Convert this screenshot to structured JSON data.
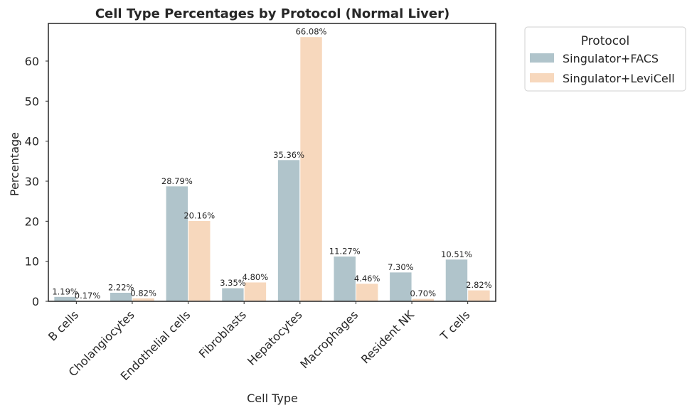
{
  "chart_data": {
    "type": "bar",
    "title": "Cell Type Percentages by Protocol (Normal Liver)",
    "xlabel": "Cell Type",
    "ylabel": "Percentage",
    "categories": [
      "B cells",
      "Cholangiocytes",
      "Endothelial cells",
      "Fibroblasts",
      "Hepatocytes",
      "Macrophages",
      "Resident NK",
      "T cells"
    ],
    "series": [
      {
        "name": "Singulator+FACS",
        "color": "#b0c4cb",
        "values": [
          1.19,
          2.22,
          28.79,
          3.35,
          35.36,
          11.27,
          7.3,
          10.51
        ],
        "labels": [
          "1.19%",
          "2.22%",
          "28.79%",
          "3.35%",
          "35.36%",
          "11.27%",
          "7.30%",
          "10.51%"
        ]
      },
      {
        "name": "Singulator+LeviCell",
        "color": "#f7d8bd",
        "values": [
          0.17,
          0.82,
          20.16,
          4.8,
          66.08,
          4.46,
          0.7,
          2.82
        ],
        "labels": [
          "0.17%",
          "0.82%",
          "20.16%",
          "4.80%",
          "66.08%",
          "4.46%",
          "0.70%",
          "2.82%"
        ]
      }
    ],
    "ylim": [
      0,
      69.4
    ],
    "yticks": [
      0,
      10,
      20,
      30,
      40,
      50,
      60
    ],
    "ytick_labels": [
      "0",
      "10",
      "20",
      "30",
      "40",
      "50",
      "60"
    ],
    "grid": false,
    "legend": {
      "title": "Protocol",
      "placement": "outside-upper-right"
    }
  }
}
